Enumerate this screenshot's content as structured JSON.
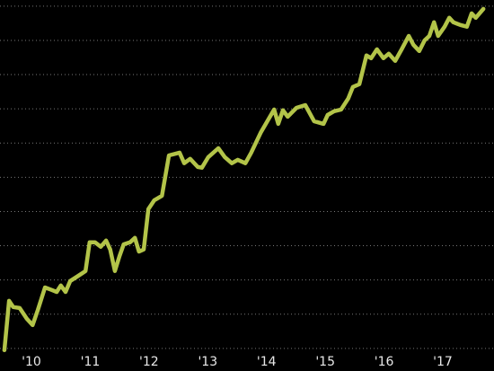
{
  "chart_data": {
    "type": "line",
    "x": [
      2009.54,
      2009.62,
      2009.69,
      2009.8,
      2009.92,
      2010.02,
      2010.11,
      2010.23,
      2010.34,
      2010.43,
      2010.5,
      2010.58,
      2010.66,
      2010.78,
      2010.92,
      2010.99,
      2011.08,
      2011.18,
      2011.27,
      2011.34,
      2011.42,
      2011.5,
      2011.57,
      2011.68,
      2011.76,
      2011.83,
      2011.91,
      2011.99,
      2012.09,
      2012.22,
      2012.34,
      2012.52,
      2012.6,
      2012.7,
      2012.83,
      2012.9,
      2013.01,
      2013.18,
      2013.29,
      2013.41,
      2013.51,
      2013.64,
      2013.74,
      2013.9,
      2014.13,
      2014.2,
      2014.28,
      2014.36,
      2014.51,
      2014.66,
      2014.81,
      2014.97,
      2015.04,
      2015.15,
      2015.27,
      2015.39,
      2015.47,
      2015.58,
      2015.7,
      2015.78,
      2015.88,
      2015.99,
      2016.08,
      2016.19,
      2016.3,
      2016.42,
      2016.5,
      2016.6,
      2016.69,
      2016.77,
      2016.85,
      2016.92,
      2017.03,
      2017.11,
      2017.18,
      2017.3,
      2017.41,
      2017.49,
      2017.56,
      2017.69
    ],
    "series": [
      {
        "color": "#b3c449",
        "values": [
          -0.05,
          1.39,
          1.21,
          1.18,
          0.87,
          0.68,
          1.13,
          1.78,
          1.71,
          1.65,
          1.84,
          1.65,
          1.97,
          2.1,
          2.26,
          3.1,
          3.1,
          2.97,
          3.15,
          2.89,
          2.26,
          2.7,
          3.04,
          3.1,
          3.23,
          2.83,
          2.89,
          4.07,
          4.33,
          4.46,
          5.64,
          5.72,
          5.41,
          5.54,
          5.3,
          5.28,
          5.59,
          5.85,
          5.59,
          5.41,
          5.51,
          5.41,
          5.72,
          6.3,
          6.98,
          6.56,
          6.96,
          6.77,
          7.03,
          7.11,
          6.64,
          6.56,
          6.82,
          6.93,
          6.98,
          7.3,
          7.64,
          7.72,
          8.56,
          8.48,
          8.74,
          8.48,
          8.61,
          8.4,
          8.74,
          9.13,
          8.87,
          8.69,
          9.0,
          9.13,
          9.53,
          9.13,
          9.4,
          9.66,
          9.53,
          9.45,
          9.4,
          9.79,
          9.66,
          9.92
        ]
      }
    ],
    "xlim": [
      2009.465,
      2017.871
    ],
    "xticks": [
      {
        "value": 2010,
        "label": "'10"
      },
      {
        "value": 2011,
        "label": "'11"
      },
      {
        "value": 2012,
        "label": "'12"
      },
      {
        "value": 2013,
        "label": "'13"
      },
      {
        "value": 2014,
        "label": "'14"
      },
      {
        "value": 2015,
        "label": "'15"
      },
      {
        "value": 2016,
        "label": "'16"
      },
      {
        "value": 2017,
        "label": "'17"
      }
    ],
    "ylim": [
      -0.66,
      10.18
    ],
    "yticks": [
      0,
      1,
      2,
      3,
      4,
      5,
      6,
      7,
      8,
      9,
      10
    ],
    "grid": true
  }
}
